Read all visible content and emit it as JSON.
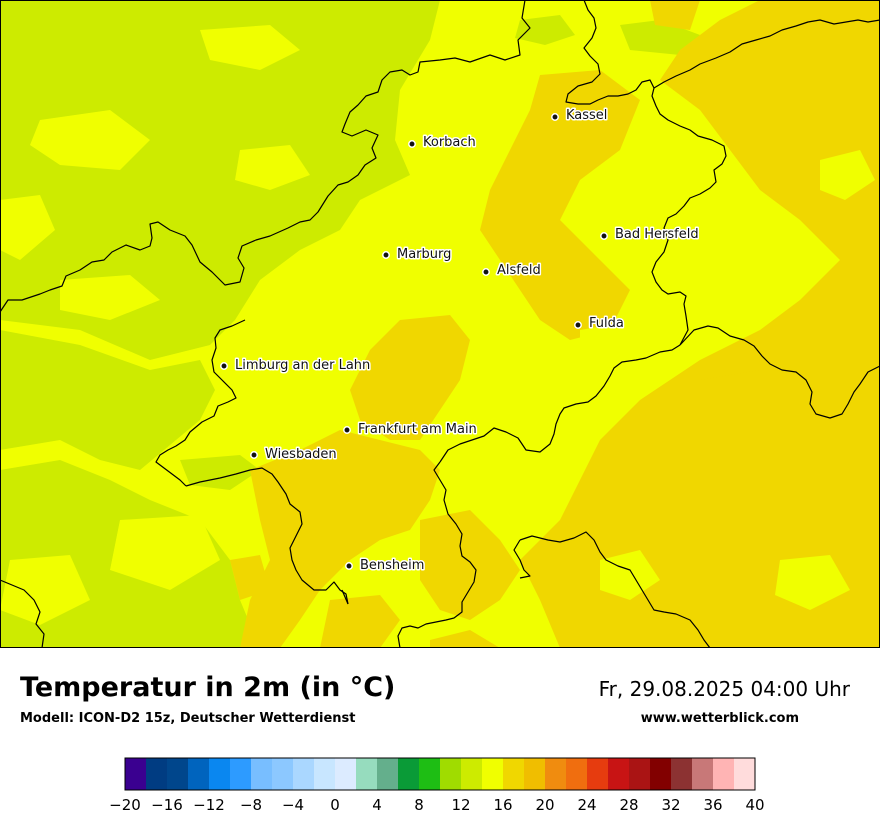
{
  "title": "Temperatur in 2m (in °C)",
  "subtitle": "Modell: ICON-D2 15z, Deutscher Wetterdienst",
  "datetime": "Fr, 29.08.2025 04:00 Uhr",
  "website": "www.wetterblick.com",
  "cities": [
    {
      "name": "Kassel"
    },
    {
      "name": "Korbach"
    },
    {
      "name": "Bad Hersfeld"
    },
    {
      "name": "Marburg"
    },
    {
      "name": "Alsfeld"
    },
    {
      "name": "Fulda"
    },
    {
      "name": "Limburg an der Lahn"
    },
    {
      "name": "Frankfurt am Main"
    },
    {
      "name": "Wiesbaden"
    },
    {
      "name": "Bensheim"
    }
  ],
  "color_scale": {
    "unit": "°C",
    "min": -20,
    "max": 40,
    "step": 2,
    "tick_labels": [
      "−20",
      "−16",
      "−12",
      "−8",
      "−4",
      "0",
      "4",
      "8",
      "12",
      "16",
      "20",
      "24",
      "28",
      "32",
      "36",
      "40"
    ],
    "colors": [
      "#3a0090",
      "#003c82",
      "#00468c",
      "#0064be",
      "#0a87f0",
      "#2d9bff",
      "#78beff",
      "#8cc8ff",
      "#aad7ff",
      "#c8e6ff",
      "#dcebff",
      "#96dcbe",
      "#64af8c",
      "#0a9b37",
      "#1ebe14",
      "#a0dc00",
      "#cdeb00",
      "#f0ff00",
      "#f0d700",
      "#f0be00",
      "#f08c0f",
      "#f06e0f",
      "#e63c0f",
      "#c81414",
      "#aa1414",
      "#820000",
      "#8c3232",
      "#c87878",
      "#ffb4b4",
      "#ffdcdc"
    ]
  },
  "map_colors": {
    "temp_12_14": "#cdeb00",
    "temp_14_16": "#f0ff00",
    "temp_16_18": "#f0d700",
    "border": "#000000"
  }
}
